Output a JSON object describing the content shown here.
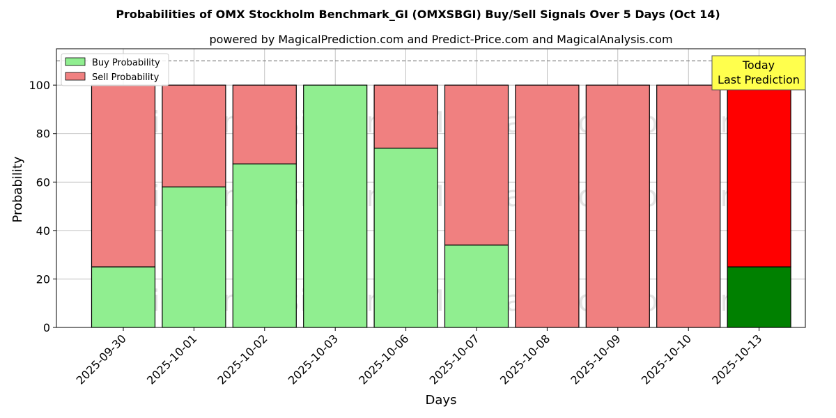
{
  "chart_data": {
    "type": "bar",
    "stacked": true,
    "title": "Probabilities of OMX Stockholm Benchmark_GI (OMXSBGI) Buy/Sell Signals Over 5 Days (Oct 14)",
    "subtitle": "powered by MagicalPrediction.com and Predict-Price.com and MagicalAnalysis.com",
    "xlabel": "Days",
    "ylabel": "Probability",
    "ylim": [
      0,
      115
    ],
    "yticks": [
      0,
      20,
      40,
      60,
      80,
      100
    ],
    "grid": true,
    "legend_position": "top-left",
    "categories": [
      "2025-09-30",
      "2025-10-01",
      "2025-10-02",
      "2025-10-03",
      "2025-10-06",
      "2025-10-07",
      "2025-10-08",
      "2025-10-09",
      "2025-10-10",
      "2025-10-13"
    ],
    "series": [
      {
        "name": "Buy Probability",
        "color": "#90ee90",
        "values": [
          25,
          58,
          67.5,
          100,
          74,
          34,
          0,
          0,
          0,
          25
        ]
      },
      {
        "name": "Sell Probability",
        "color": "#f08080",
        "values": [
          75,
          42,
          32.5,
          0,
          26,
          66,
          100,
          100,
          100,
          75
        ]
      }
    ],
    "highlight": {
      "index": 9,
      "buy_color": "#008000",
      "sell_color": "#ff0000"
    },
    "reference_line": {
      "y": 110,
      "style": "dashed"
    },
    "annotation": {
      "lines": [
        "Today",
        "Last Prediction"
      ],
      "background": "#ffff4d"
    },
    "watermarks": [
      "MagicalAnalysis.com",
      "MagicalPrediction.com"
    ]
  }
}
